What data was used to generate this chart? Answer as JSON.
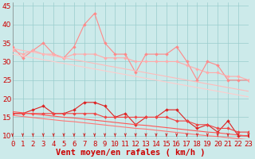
{
  "x": [
    0,
    1,
    2,
    3,
    4,
    5,
    6,
    7,
    8,
    9,
    10,
    11,
    12,
    13,
    14,
    15,
    16,
    17,
    18,
    19,
    20,
    21,
    22,
    23
  ],
  "series": [
    {
      "name": "rafales_spiky",
      "color": "#ff8888",
      "linewidth": 0.8,
      "markersize": 2.0,
      "y": [
        34,
        31,
        33,
        35,
        32,
        31,
        34,
        40,
        43,
        35,
        32,
        32,
        27,
        32,
        32,
        32,
        34,
        30,
        25,
        30,
        29,
        25,
        25,
        25
      ]
    },
    {
      "name": "rafales_smooth",
      "color": "#ffaaaa",
      "linewidth": 0.8,
      "markersize": 2.0,
      "y": [
        33,
        32,
        33,
        32,
        32,
        31,
        32,
        32,
        32,
        31,
        31,
        31,
        30,
        30,
        30,
        30,
        30,
        29,
        28,
        27,
        27,
        26,
        26,
        25
      ]
    },
    {
      "name": "rafales_trend_upper",
      "color": "#ffbbbb",
      "linewidth": 0.8,
      "markersize": 0,
      "y": [
        33.5,
        33.0,
        32.5,
        32.0,
        31.5,
        31.0,
        30.5,
        30.0,
        29.5,
        29.0,
        28.5,
        28.0,
        27.5,
        27.0,
        26.5,
        26.0,
        25.5,
        25.0,
        24.5,
        24.0,
        23.5,
        23.0,
        22.5,
        22.0
      ]
    },
    {
      "name": "rafales_trend_lower",
      "color": "#ffcccc",
      "linewidth": 0.8,
      "markersize": 0,
      "y": [
        32.0,
        31.5,
        31.0,
        30.5,
        30.0,
        29.5,
        29.0,
        28.5,
        28.0,
        27.5,
        27.0,
        26.5,
        26.0,
        25.5,
        25.0,
        24.5,
        24.0,
        23.5,
        23.0,
        22.5,
        22.0,
        21.5,
        21.0,
        20.5
      ]
    },
    {
      "name": "moyen_spiky",
      "color": "#dd2222",
      "linewidth": 0.8,
      "markersize": 2.0,
      "y": [
        16,
        16,
        17,
        18,
        16,
        16,
        17,
        19,
        19,
        18,
        15,
        16,
        13,
        15,
        15,
        17,
        17,
        14,
        12,
        13,
        11,
        14,
        10,
        10
      ]
    },
    {
      "name": "moyen_smooth",
      "color": "#ee4444",
      "linewidth": 0.8,
      "markersize": 2.0,
      "y": [
        16,
        16,
        16,
        16,
        16,
        16,
        16,
        16,
        16,
        15,
        15,
        15,
        15,
        15,
        15,
        15,
        14,
        14,
        13,
        13,
        12,
        12,
        11,
        11
      ]
    },
    {
      "name": "moyen_trend_upper",
      "color": "#ff5555",
      "linewidth": 0.8,
      "markersize": 0,
      "y": [
        16.5,
        16.2,
        15.9,
        15.6,
        15.3,
        15.0,
        14.8,
        14.5,
        14.2,
        13.9,
        13.6,
        13.3,
        13.0,
        12.8,
        12.5,
        12.2,
        11.9,
        11.6,
        11.3,
        11.0,
        10.8,
        10.5,
        10.2,
        9.9
      ]
    },
    {
      "name": "moyen_trend_lower",
      "color": "#ff7777",
      "linewidth": 0.8,
      "markersize": 0,
      "y": [
        15.5,
        15.2,
        14.9,
        14.6,
        14.3,
        14.0,
        13.8,
        13.5,
        13.2,
        12.9,
        12.6,
        12.3,
        12.0,
        11.8,
        11.5,
        11.2,
        10.9,
        10.6,
        10.3,
        10.0,
        9.8,
        9.5,
        9.2,
        8.9
      ]
    }
  ],
  "xlabel": "Vent moyen/en rafales ( km/h )",
  "yticks": [
    10,
    15,
    20,
    25,
    30,
    35,
    40,
    45
  ],
  "xtick_labels": [
    "0",
    "1",
    "2",
    "3",
    "4",
    "5",
    "6",
    "7",
    "8",
    "9",
    "10",
    "11",
    "12",
    "13",
    "14",
    "15",
    "16",
    "17",
    "18",
    "19",
    "20",
    "21",
    "22",
    "23"
  ],
  "xlim": [
    0,
    23
  ],
  "ylim": [
    9,
    46
  ],
  "bg_color": "#cceaea",
  "grid_color": "#99cccc",
  "arrow_color": "#cc2222",
  "tick_label_color": "#cc0000",
  "xlabel_color": "#cc0000",
  "xlabel_fontsize": 7.5,
  "tick_fontsize": 6.5
}
